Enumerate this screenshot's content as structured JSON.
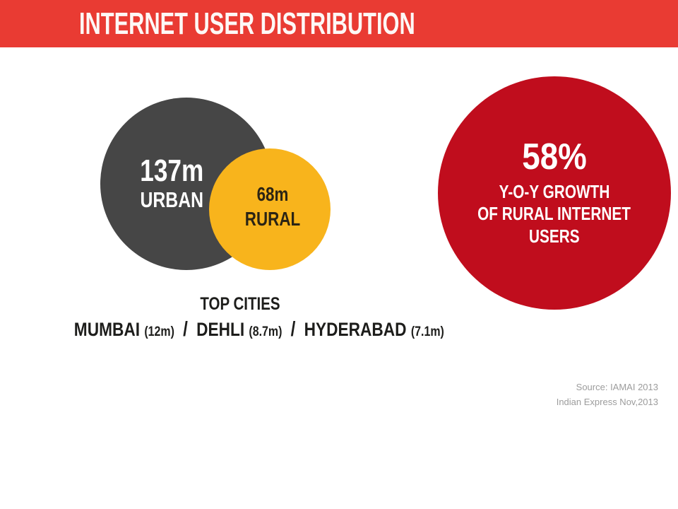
{
  "header": {
    "title": "INTERNET USER DISTRIBUTION"
  },
  "bubbles": {
    "urban": {
      "value": "137m",
      "label": "URBAN"
    },
    "rural": {
      "value": "68m",
      "label": "RURAL"
    },
    "growth": {
      "value": "58%",
      "lines": [
        "Y-O-Y GROWTH",
        "OF RURAL INTERNET",
        "USERS"
      ]
    }
  },
  "top_cities": {
    "heading": "TOP CITIES",
    "separator": "/",
    "cities": [
      {
        "name": "MUMBAI",
        "value": "(12m)"
      },
      {
        "name": "DEHLI",
        "value": "(8.7m)"
      },
      {
        "name": "HYDERABAD",
        "value": "(7.1m)"
      }
    ]
  },
  "source": {
    "line1": "Source: IAMAI 2013",
    "line2": "Indian Express Nov,2013"
  },
  "colors": {
    "header_red": "#e93b33",
    "growth_red": "#c00d1d",
    "urban_gray": "#464646",
    "rural_yellow": "#f8b41c",
    "ink": "#1d1d1b",
    "muted_gray": "#9c9c9c"
  },
  "chart_data": {
    "type": "bubble",
    "title": "INTERNET USER DISTRIBUTION",
    "series": [
      {
        "name": "URBAN",
        "display": "137m",
        "value_millions": 137,
        "color": "#464646"
      },
      {
        "name": "RURAL",
        "display": "68m",
        "value_millions": 68,
        "color": "#f8b41c"
      },
      {
        "name": "Y-O-Y GROWTH OF RURAL INTERNET USERS",
        "display": "58%",
        "value_percent": 58,
        "color": "#c00d1d"
      }
    ],
    "annotations": [
      "TOP CITIES",
      "MUMBAI (12m) / DEHLI (8.7m) / HYDERABAD (7.1m)",
      "Source: IAMAI 2013",
      "Indian Express Nov,2013"
    ],
    "legend_position": "none",
    "grid": false
  }
}
